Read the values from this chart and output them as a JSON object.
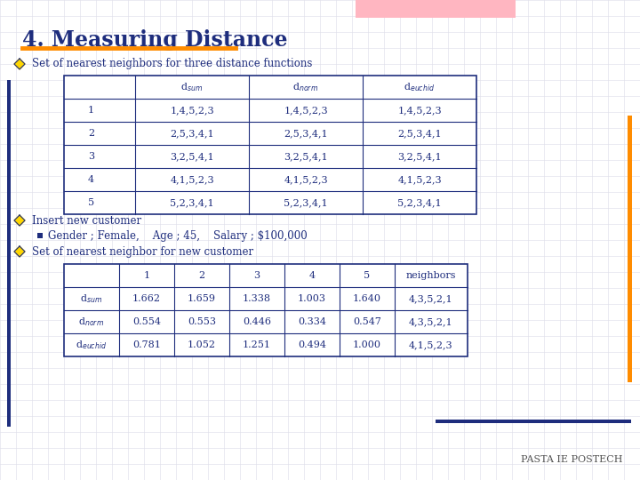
{
  "title": "4. Measuring Distance",
  "title_underline_color": "#FF8C00",
  "background_color": "#FFFFFF",
  "grid_color": "#DCDCE8",
  "text_color": "#1E2D7D",
  "bullet_color": "#FFD700",
  "bullet_outline_color": "#1E2D7D",
  "bullet1_text": "Set of nearest neighbors for three distance functions",
  "table1_rows": [
    [
      "1",
      "1,4,5,2,3",
      "1,4,5,2,3",
      "1,4,5,2,3"
    ],
    [
      "2",
      "2,5,3,4,1",
      "2,5,3,4,1",
      "2,5,3,4,1"
    ],
    [
      "3",
      "3,2,5,4,1",
      "3,2,5,4,1",
      "3,2,5,4,1"
    ],
    [
      "4",
      "4,1,5,2,3",
      "4,1,5,2,3",
      "4,1,5,2,3"
    ],
    [
      "5",
      "5,2,3,4,1",
      "5,2,3,4,1",
      "5,2,3,4,1"
    ]
  ],
  "bullet2_text": "Insert new customer",
  "sub_bullet_text": "Gender ; Female,    Age ; 45,    Salary ; $100,000",
  "bullet3_text": "Set of nearest neighbor for new customer",
  "table2_rows": [
    [
      "d$_{sum}$",
      "1.662",
      "1.659",
      "1.338",
      "1.003",
      "1.640",
      "4,3,5,2,1"
    ],
    [
      "d$_{norm}$",
      "0.554",
      "0.553",
      "0.446",
      "0.334",
      "0.547",
      "4,3,5,2,1"
    ],
    [
      "d$_{euchid}$",
      "0.781",
      "1.052",
      "1.251",
      "0.494",
      "1.000",
      "4,1,5,2,3"
    ]
  ],
  "table_border_color": "#1E2D7D",
  "left_bar_color": "#1E2D7D",
  "right_bar_color": "#FF8C00",
  "bottom_bar_color": "#1E2D7D",
  "pink_rect_color": "#FFB6C1",
  "footer_text": "PASTA IE POSTECH",
  "footer_color": "#555555"
}
